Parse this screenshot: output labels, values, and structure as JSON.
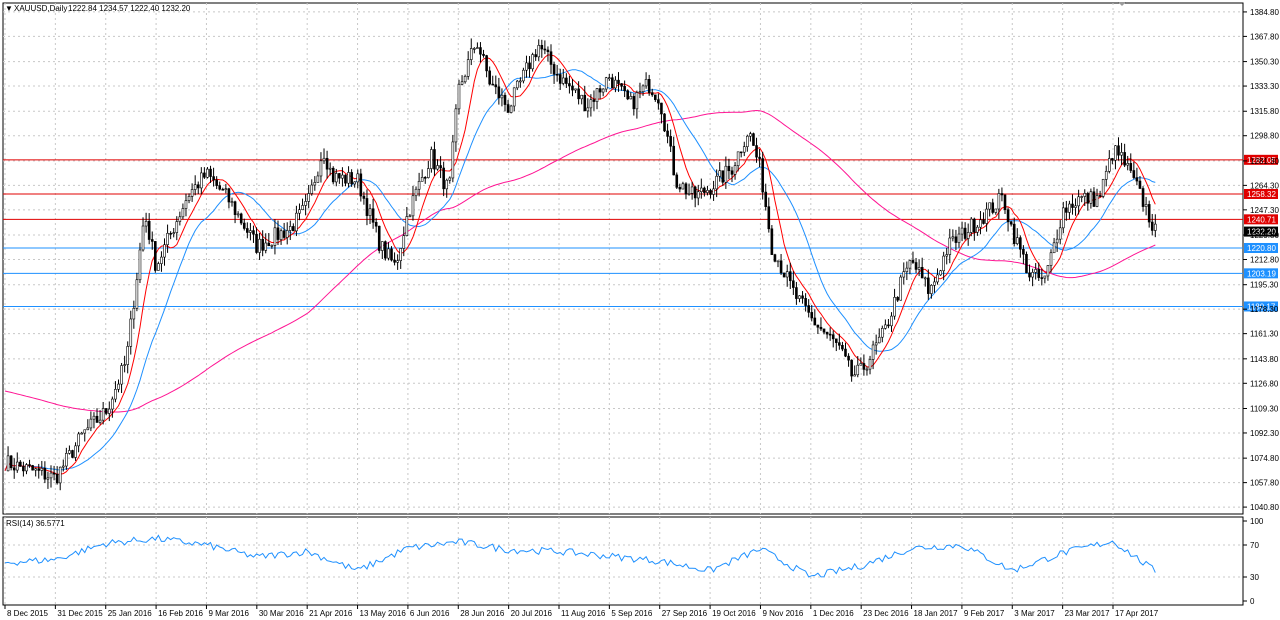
{
  "header": {
    "symbol_label": "XAUUSD,Daily",
    "ohlc_text": "1222.84 1234.57 1222.40 1232.20"
  },
  "rsi": {
    "label": "RSI(14) 36.5771",
    "levels": [
      100,
      70,
      30,
      0
    ]
  },
  "colors": {
    "candles": "#000000",
    "ma_fast": "#ff0000",
    "ma_medium": "#1e90ff",
    "ma_slow": "#ff1493",
    "resistance": "#e00000",
    "support": "#1e90ff",
    "rsi_line": "#1e90ff",
    "grid": "#c8c8c8"
  },
  "chart_data": {
    "type": "candlestick",
    "title": "",
    "ylim": [
      1036.0,
      1391.0
    ],
    "price_ticks": [
      1384.8,
      1367.8,
      1350.3,
      1333.3,
      1315.8,
      1298.8,
      1281.3,
      1264.3,
      1247.3,
      1229.8,
      1212.8,
      1195.3,
      1178.3,
      1161.3,
      1143.8,
      1126.8,
      1109.3,
      1092.3,
      1074.8,
      1057.8,
      1040.8
    ],
    "date_labels": [
      "8 Dec 2015",
      "31 Dec 2015",
      "25 Jan 2016",
      "16 Feb 2016",
      "9 Mar 2016",
      "30 Mar 2016",
      "21 Apr 2016",
      "13 May 2016",
      "6 Jun 2016",
      "28 Jun 2016",
      "20 Jul 2016",
      "11 Aug 2016",
      "5 Sep 2016",
      "27 Sep 2016",
      "19 Oct 2016",
      "9 Nov 2016",
      "1 Dec 2016",
      "23 Dec 2016",
      "18 Jan 2017",
      "9 Feb 2017",
      "3 Mar 2017",
      "23 Mar 2017",
      "17 Apr 2017"
    ],
    "horizontal_levels": [
      {
        "value": 1282.05,
        "label": "1282.05",
        "kind": "resistance"
      },
      {
        "value": 1258.32,
        "label": "1258.32",
        "kind": "resistance"
      },
      {
        "value": 1240.71,
        "label": "1240.71",
        "kind": "resistance"
      },
      {
        "value": 1220.8,
        "label": "1220.80",
        "kind": "support"
      },
      {
        "value": 1203.19,
        "label": "1203.19",
        "kind": "support"
      },
      {
        "value": 1180.17,
        "label": "1180.17",
        "kind": "support"
      }
    ],
    "current_price": {
      "value": 1232.2,
      "label": "1232.20"
    },
    "close_path": [
      [
        "8 Dec 2015",
        1072
      ],
      [
        "31 Dec 2015",
        1061
      ],
      [
        "14 Jan 2016",
        1092
      ],
      [
        "25 Jan 2016",
        1107
      ],
      [
        "3 Feb 2016",
        1142
      ],
      [
        "11 Feb 2016",
        1245
      ],
      [
        "16 Feb 2016",
        1208
      ],
      [
        "1 Mar 2016",
        1258
      ],
      [
        "9 Mar 2016",
        1272
      ],
      [
        "18 Mar 2016",
        1255
      ],
      [
        "30 Mar 2016",
        1222
      ],
      [
        "14 Apr 2016",
        1235
      ],
      [
        "21 Apr 2016",
        1250
      ],
      [
        "28 Apr 2016",
        1290
      ],
      [
        "2 May 2016",
        1270
      ],
      [
        "13 May 2016",
        1268
      ],
      [
        "24 May 2016",
        1222
      ],
      [
        "31 May 2016",
        1208
      ],
      [
        "6 Jun 2016",
        1245
      ],
      [
        "16 Jun 2016",
        1285
      ],
      [
        "24 Jun 2016",
        1260
      ],
      [
        "28 Jun 2016",
        1330
      ],
      [
        "6 Jul 2016",
        1365
      ],
      [
        "12 Jul 2016",
        1335
      ],
      [
        "20 Jul 2016",
        1318
      ],
      [
        "2 Aug 2016",
        1362
      ],
      [
        "11 Aug 2016",
        1340
      ],
      [
        "25 Aug 2016",
        1320
      ],
      [
        "5 Sep 2016",
        1340
      ],
      [
        "14 Sep 2016",
        1320
      ],
      [
        "22 Sep 2016",
        1335
      ],
      [
        "27 Sep 2016",
        1325
      ],
      [
        "4 Oct 2016",
        1268
      ],
      [
        "12 Oct 2016",
        1256
      ],
      [
        "19 Oct 2016",
        1263
      ],
      [
        "28 Oct 2016",
        1276
      ],
      [
        "4 Nov 2016",
        1303
      ],
      [
        "9 Nov 2016",
        1275
      ],
      [
        "14 Nov 2016",
        1222
      ],
      [
        "24 Nov 2016",
        1188
      ],
      [
        "1 Dec 2016",
        1172
      ],
      [
        "13 Dec 2016",
        1152
      ],
      [
        "19 Dec 2016",
        1132
      ],
      [
        "23 Dec 2016",
        1135
      ],
      [
        "4 Jan 2017",
        1162
      ],
      [
        "13 Jan 2017",
        1198
      ],
      [
        "18 Jan 2017",
        1212
      ],
      [
        "26 Jan 2017",
        1190
      ],
      [
        "3 Feb 2017",
        1222
      ],
      [
        "9 Feb 2017",
        1230
      ],
      [
        "16 Feb 2017",
        1240
      ],
      [
        "27 Feb 2017",
        1256
      ],
      [
        "3 Mar 2017",
        1233
      ],
      [
        "10 Mar 2017",
        1202
      ],
      [
        "16 Mar 2017",
        1198
      ],
      [
        "23 Mar 2017",
        1247
      ],
      [
        "31 Mar 2017",
        1255
      ],
      [
        "10 Apr 2017",
        1255
      ],
      [
        "17 Apr 2017",
        1288
      ],
      [
        "21 Apr 2017",
        1284
      ],
      [
        "27 Apr 2017",
        1268
      ],
      [
        "3 May 2017",
        1250
      ],
      [
        "8 May 2017",
        1232
      ]
    ],
    "rsi_path": [
      [
        "8 Dec 2015",
        48
      ],
      [
        "31 Dec 2015",
        52
      ],
      [
        "25 Jan 2016",
        72
      ],
      [
        "16 Feb 2016",
        78
      ],
      [
        "9 Mar 2016",
        70
      ],
      [
        "30 Mar 2016",
        55
      ],
      [
        "21 Apr 2016",
        62
      ],
      [
        "13 May 2016",
        38
      ],
      [
        "6 Jun 2016",
        66
      ],
      [
        "28 Jun 2016",
        74
      ],
      [
        "20 Jul 2016",
        64
      ],
      [
        "11 Aug 2016",
        62
      ],
      [
        "5 Sep 2016",
        56
      ],
      [
        "27 Sep 2016",
        50
      ],
      [
        "19 Oct 2016",
        38
      ],
      [
        "9 Nov 2016",
        65
      ],
      [
        "1 Dec 2016",
        30
      ],
      [
        "23 Dec 2016",
        44
      ],
      [
        "18 Jan 2017",
        66
      ],
      [
        "9 Feb 2017",
        70
      ],
      [
        "3 Mar 2017",
        38
      ],
      [
        "23 Mar 2017",
        60
      ],
      [
        "17 Apr 2017",
        75
      ],
      [
        "8 May 2017",
        37
      ]
    ]
  }
}
